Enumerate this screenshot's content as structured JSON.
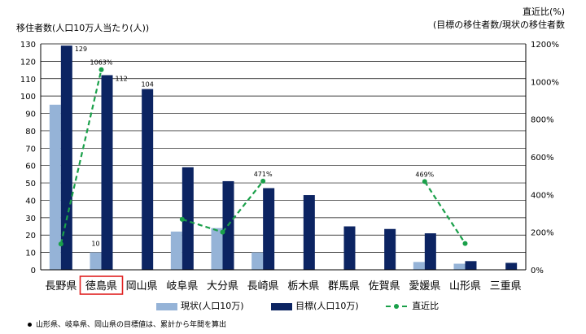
{
  "chart_data": {
    "type": "bar",
    "ylabel": "移住者数(人口10万人当たり(人))",
    "y2label_line1": "直近比(%)",
    "y2label_line2": "(目標の移住者数/現状の移住者数",
    "ylim": [
      0,
      130
    ],
    "y2lim": [
      0,
      1200
    ],
    "yticks": [
      0,
      10,
      20,
      30,
      40,
      50,
      60,
      70,
      80,
      90,
      100,
      110,
      120,
      130
    ],
    "y2ticks": [
      "0%",
      "200%",
      "400%",
      "600%",
      "800%",
      "1000%",
      "1200%"
    ],
    "categories": [
      "長野県",
      "徳島県",
      "岡山県",
      "岐阜県",
      "大分県",
      "長崎県",
      "栃木県",
      "群馬県",
      "佐賀県",
      "愛媛県",
      "山形県",
      "三重県"
    ],
    "highlight_category": "徳島県",
    "grid": true,
    "legend_position": "bottom",
    "series": [
      {
        "name": "現状(人口10万)",
        "color": "#95B3D7",
        "values": [
          95,
          10,
          null,
          22,
          24,
          10,
          null,
          null,
          null,
          4.5,
          3.5,
          null
        ]
      },
      {
        "name": "目標(人口10万)",
        "color": "#0C2462",
        "values": [
          129,
          112,
          104,
          59,
          51,
          47,
          43,
          25,
          23.5,
          21,
          5,
          4
        ]
      },
      {
        "name": "直近比",
        "color": "#1AA04A",
        "axis": "right",
        "values": [
          137,
          1063,
          null,
          268,
          200,
          471,
          null,
          null,
          null,
          469,
          140,
          null
        ]
      }
    ],
    "data_labels": [
      {
        "series": 1,
        "index": 0,
        "text": "129"
      },
      {
        "series": 1,
        "index": 1,
        "text": "112"
      },
      {
        "series": 1,
        "index": 2,
        "text": "104"
      },
      {
        "series": 0,
        "index": 1,
        "text": "10"
      },
      {
        "series": 2,
        "index": 1,
        "text": "1063%"
      },
      {
        "series": 2,
        "index": 5,
        "text": "471%"
      },
      {
        "series": 2,
        "index": 9,
        "text": "469%"
      }
    ]
  },
  "note": "山形県、岐阜県、岡山県の目標値は、累計から年間を算出"
}
